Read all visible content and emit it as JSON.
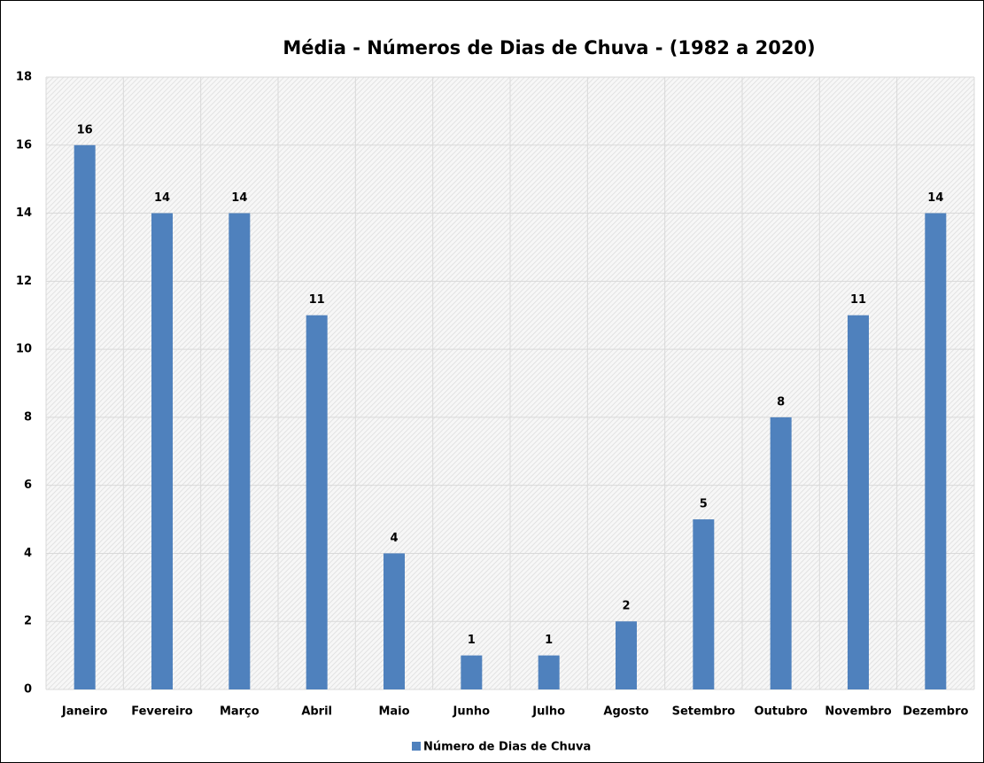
{
  "chart_data": {
    "type": "bar",
    "title": "Média - Números de Dias de Chuva - (1982 a 2020)",
    "categories": [
      "Janeiro",
      "Fevereiro",
      "Março",
      "Abril",
      "Maio",
      "Junho",
      "Julho",
      "Agosto",
      "Setembro",
      "Outubro",
      "Novembro",
      "Dezembro"
    ],
    "series": [
      {
        "name": "Número de Dias de Chuva",
        "color": "#4f81bd",
        "values": [
          16,
          14,
          14,
          11,
          4,
          1,
          1,
          2,
          5,
          8,
          11,
          14
        ]
      }
    ],
    "ylim": [
      0,
      18
    ],
    "yticks": [
      0,
      2,
      4,
      6,
      8,
      10,
      12,
      14,
      16,
      18
    ],
    "grid": true,
    "legend": "bottom"
  }
}
